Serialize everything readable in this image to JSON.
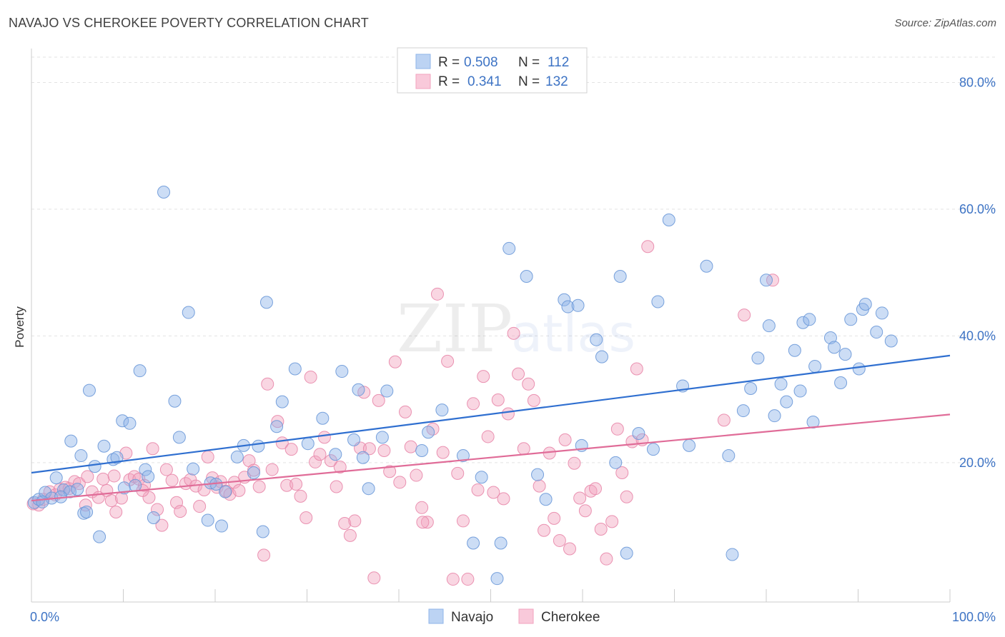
{
  "header": {
    "title": "NAVAJO VS CHEROKEE POVERTY CORRELATION CHART",
    "source": "Source: ZipAtlas.com"
  },
  "watermark": {
    "zip": "ZIP",
    "atlas": "atlas"
  },
  "legend": {
    "rows": [
      {
        "r_label": "R =",
        "r_value": "0.508",
        "n_label": "N =",
        "n_value": "112",
        "color": "#8fb4e8"
      },
      {
        "r_label": "R =",
        "r_value": "0.341",
        "n_label": "N =",
        "n_value": "132",
        "color": "#f2a3bf"
      }
    ]
  },
  "chart_data": {
    "type": "scatter",
    "title": "NAVAJO VS CHEROKEE POVERTY CORRELATION CHART",
    "xlabel": "",
    "ylabel": "Poverty",
    "xlim": [
      0,
      100
    ],
    "ylim": [
      -2,
      84
    ],
    "x_tick_labels": [
      "0.0%",
      "100.0%"
    ],
    "y_ticks": [
      20,
      40,
      60,
      80
    ],
    "y_tick_labels": [
      "20.0%",
      "40.0%",
      "60.0%",
      "80.0%"
    ],
    "grid": true,
    "legend_position": "bottom-center",
    "series": [
      {
        "name": "Navajo",
        "color": "#8fb4e8",
        "stroke": "#6a98d8",
        "line_color": "#2f6fd0",
        "trend": [
          [
            0,
            18.4
          ],
          [
            100,
            36.9
          ]
        ],
        "points": [
          [
            0.3,
            13.7
          ],
          [
            0.8,
            14.2
          ],
          [
            1.5,
            15.3
          ],
          [
            2.2,
            14.4
          ],
          [
            2.7,
            17.6
          ],
          [
            3.5,
            15.7
          ],
          [
            4.2,
            15.4
          ],
          [
            4.3,
            23.4
          ],
          [
            5.4,
            21.1
          ],
          [
            5.7,
            12.0
          ],
          [
            6.3,
            31.4
          ],
          [
            6.9,
            19.4
          ],
          [
            7.4,
            8.3
          ],
          [
            7.9,
            22.6
          ],
          [
            8.9,
            20.5
          ],
          [
            9.3,
            20.8
          ],
          [
            9.9,
            26.6
          ],
          [
            10.1,
            16.0
          ],
          [
            10.7,
            26.2
          ],
          [
            11.3,
            16.4
          ],
          [
            11.8,
            34.5
          ],
          [
            12.4,
            18.9
          ],
          [
            12.7,
            17.8
          ],
          [
            13.3,
            11.3
          ],
          [
            14.4,
            62.7
          ],
          [
            15.6,
            29.7
          ],
          [
            16.1,
            24.0
          ],
          [
            17.1,
            43.7
          ],
          [
            17.6,
            19.0
          ],
          [
            19.2,
            10.9
          ],
          [
            19.5,
            16.8
          ],
          [
            20.1,
            16.6
          ],
          [
            20.7,
            10.0
          ],
          [
            21.1,
            15.4
          ],
          [
            22.4,
            20.9
          ],
          [
            23.1,
            22.7
          ],
          [
            24.2,
            18.4
          ],
          [
            24.7,
            22.6
          ],
          [
            25.2,
            9.1
          ],
          [
            25.6,
            45.3
          ],
          [
            26.7,
            25.7
          ],
          [
            27.3,
            29.6
          ],
          [
            28.7,
            34.8
          ],
          [
            30.1,
            23.0
          ],
          [
            31.7,
            27.0
          ],
          [
            33.1,
            21.3
          ],
          [
            33.8,
            34.4
          ],
          [
            35.1,
            23.6
          ],
          [
            35.6,
            31.5
          ],
          [
            36.1,
            20.8
          ],
          [
            36.7,
            15.9
          ],
          [
            38.2,
            24.0
          ],
          [
            38.7,
            31.3
          ],
          [
            42.5,
            21.9
          ],
          [
            43.2,
            24.8
          ],
          [
            44.7,
            28.3
          ],
          [
            47.0,
            21.1
          ],
          [
            48.1,
            7.3
          ],
          [
            49.0,
            17.7
          ],
          [
            50.7,
            1.7
          ],
          [
            51.1,
            7.3
          ],
          [
            52.0,
            53.8
          ],
          [
            53.9,
            49.4
          ],
          [
            55.1,
            18.1
          ],
          [
            56.0,
            14.2
          ],
          [
            58.0,
            45.7
          ],
          [
            58.4,
            44.6
          ],
          [
            59.5,
            44.8
          ],
          [
            59.9,
            22.7
          ],
          [
            61.5,
            39.4
          ],
          [
            62.1,
            36.7
          ],
          [
            63.6,
            20.0
          ],
          [
            64.1,
            49.4
          ],
          [
            64.8,
            5.7
          ],
          [
            66.1,
            24.6
          ],
          [
            67.7,
            22.1
          ],
          [
            68.2,
            45.4
          ],
          [
            69.4,
            58.3
          ],
          [
            70.9,
            32.1
          ],
          [
            71.6,
            22.7
          ],
          [
            73.5,
            51.0
          ],
          [
            75.9,
            21.1
          ],
          [
            76.3,
            5.5
          ],
          [
            77.5,
            28.2
          ],
          [
            78.3,
            31.7
          ],
          [
            79.1,
            36.5
          ],
          [
            80.0,
            48.8
          ],
          [
            80.3,
            41.6
          ],
          [
            80.9,
            27.4
          ],
          [
            81.6,
            32.4
          ],
          [
            82.2,
            29.6
          ],
          [
            83.1,
            37.7
          ],
          [
            83.7,
            31.3
          ],
          [
            84.0,
            42.1
          ],
          [
            84.7,
            42.6
          ],
          [
            85.1,
            26.4
          ],
          [
            85.3,
            35.2
          ],
          [
            87.0,
            39.7
          ],
          [
            87.4,
            38.2
          ],
          [
            88.1,
            32.6
          ],
          [
            88.6,
            37.1
          ],
          [
            89.2,
            42.6
          ],
          [
            90.1,
            34.8
          ],
          [
            90.5,
            44.2
          ],
          [
            90.8,
            45.0
          ],
          [
            92.0,
            40.6
          ],
          [
            92.6,
            43.6
          ],
          [
            93.6,
            39.2
          ],
          [
            1.2,
            13.8
          ],
          [
            3.2,
            14.6
          ],
          [
            6.0,
            12.2
          ],
          [
            5.0,
            15.8
          ]
        ]
      },
      {
        "name": "Cherokee",
        "color": "#f2a3bf",
        "stroke": "#e887aa",
        "line_color": "#e06c98",
        "trend": [
          [
            0,
            14.0
          ],
          [
            100,
            27.6
          ]
        ],
        "points": [
          [
            0.2,
            13.5
          ],
          [
            0.8,
            13.3
          ],
          [
            1.3,
            14.2
          ],
          [
            2.0,
            15.4
          ],
          [
            2.6,
            14.9
          ],
          [
            3.1,
            15.8
          ],
          [
            3.7,
            16.1
          ],
          [
            4.1,
            15.9
          ],
          [
            4.7,
            17.0
          ],
          [
            5.2,
            16.7
          ],
          [
            5.9,
            13.3
          ],
          [
            6.1,
            17.8
          ],
          [
            6.6,
            15.4
          ],
          [
            7.3,
            14.5
          ],
          [
            7.8,
            17.4
          ],
          [
            8.2,
            15.6
          ],
          [
            8.7,
            14.0
          ],
          [
            9.2,
            12.2
          ],
          [
            9.8,
            14.4
          ],
          [
            10.3,
            21.5
          ],
          [
            10.7,
            17.3
          ],
          [
            11.2,
            17.8
          ],
          [
            11.7,
            17.4
          ],
          [
            12.3,
            16.4
          ],
          [
            12.8,
            14.5
          ],
          [
            13.2,
            22.2
          ],
          [
            13.7,
            12.6
          ],
          [
            14.2,
            10.1
          ],
          [
            14.7,
            18.9
          ],
          [
            15.3,
            17.2
          ],
          [
            15.8,
            13.7
          ],
          [
            16.2,
            12.3
          ],
          [
            16.8,
            16.7
          ],
          [
            17.3,
            17.3
          ],
          [
            17.9,
            16.3
          ],
          [
            18.3,
            13.1
          ],
          [
            18.8,
            15.7
          ],
          [
            19.2,
            20.9
          ],
          [
            19.7,
            17.6
          ],
          [
            20.2,
            16.1
          ],
          [
            20.6,
            17.0
          ],
          [
            21.2,
            15.5
          ],
          [
            21.6,
            15.0
          ],
          [
            22.1,
            16.9
          ],
          [
            22.6,
            15.6
          ],
          [
            23.2,
            17.7
          ],
          [
            23.7,
            20.3
          ],
          [
            24.2,
            18.8
          ],
          [
            24.8,
            16.2
          ],
          [
            25.3,
            5.4
          ],
          [
            25.7,
            32.4
          ],
          [
            26.2,
            18.9
          ],
          [
            26.8,
            26.5
          ],
          [
            27.3,
            23.1
          ],
          [
            27.8,
            16.4
          ],
          [
            28.3,
            22.1
          ],
          [
            28.8,
            16.6
          ],
          [
            29.3,
            14.7
          ],
          [
            29.9,
            11.3
          ],
          [
            30.4,
            33.5
          ],
          [
            30.9,
            20.1
          ],
          [
            31.4,
            21.3
          ],
          [
            31.9,
            24.0
          ],
          [
            32.6,
            20.3
          ],
          [
            33.2,
            16.2
          ],
          [
            33.6,
            19.3
          ],
          [
            34.1,
            10.4
          ],
          [
            34.7,
            8.5
          ],
          [
            35.2,
            10.8
          ],
          [
            35.8,
            22.3
          ],
          [
            36.2,
            31.1
          ],
          [
            36.8,
            22.2
          ],
          [
            37.3,
            1.8
          ],
          [
            37.8,
            29.8
          ],
          [
            38.4,
            21.9
          ],
          [
            39.0,
            18.6
          ],
          [
            39.6,
            35.9
          ],
          [
            40.1,
            16.9
          ],
          [
            40.7,
            28.0
          ],
          [
            41.3,
            22.5
          ],
          [
            41.9,
            18.0
          ],
          [
            42.5,
            12.9
          ],
          [
            43.1,
            10.6
          ],
          [
            43.7,
            25.3
          ],
          [
            44.2,
            46.6
          ],
          [
            44.8,
            21.6
          ],
          [
            45.3,
            36.0
          ],
          [
            45.9,
            1.6
          ],
          [
            46.4,
            18.3
          ],
          [
            47.0,
            10.8
          ],
          [
            47.5,
            1.6
          ],
          [
            48.1,
            29.3
          ],
          [
            48.6,
            15.7
          ],
          [
            49.2,
            33.6
          ],
          [
            49.7,
            24.1
          ],
          [
            50.3,
            15.3
          ],
          [
            50.8,
            29.9
          ],
          [
            51.4,
            14.3
          ],
          [
            51.9,
            27.7
          ],
          [
            52.5,
            40.4
          ],
          [
            53.0,
            34.0
          ],
          [
            53.6,
            22.2
          ],
          [
            54.1,
            32.4
          ],
          [
            54.7,
            29.8
          ],
          [
            55.3,
            16.3
          ],
          [
            55.8,
            9.3
          ],
          [
            56.4,
            21.5
          ],
          [
            56.9,
            11.2
          ],
          [
            57.5,
            7.7
          ],
          [
            58.1,
            23.6
          ],
          [
            58.6,
            6.4
          ],
          [
            59.1,
            19.9
          ],
          [
            59.7,
            14.4
          ],
          [
            60.3,
            12.4
          ],
          [
            60.9,
            15.5
          ],
          [
            61.4,
            15.9
          ],
          [
            62.0,
            9.5
          ],
          [
            62.6,
            4.8
          ],
          [
            63.2,
            10.7
          ],
          [
            63.8,
            25.3
          ],
          [
            64.3,
            18.4
          ],
          [
            64.8,
            14.6
          ],
          [
            65.4,
            23.3
          ],
          [
            65.9,
            34.8
          ],
          [
            66.5,
            23.6
          ],
          [
            67.1,
            54.1
          ],
          [
            75.4,
            26.7
          ],
          [
            77.6,
            43.3
          ],
          [
            80.7,
            48.8
          ],
          [
            42.6,
            10.6
          ],
          [
            9.0,
            17.9
          ],
          [
            12.1,
            15.6
          ]
        ]
      }
    ]
  },
  "bottom_legend": {
    "items": [
      {
        "label": "Navajo",
        "color": "#8fb4e8"
      },
      {
        "label": "Cherokee",
        "color": "#f2a3bf"
      }
    ]
  }
}
